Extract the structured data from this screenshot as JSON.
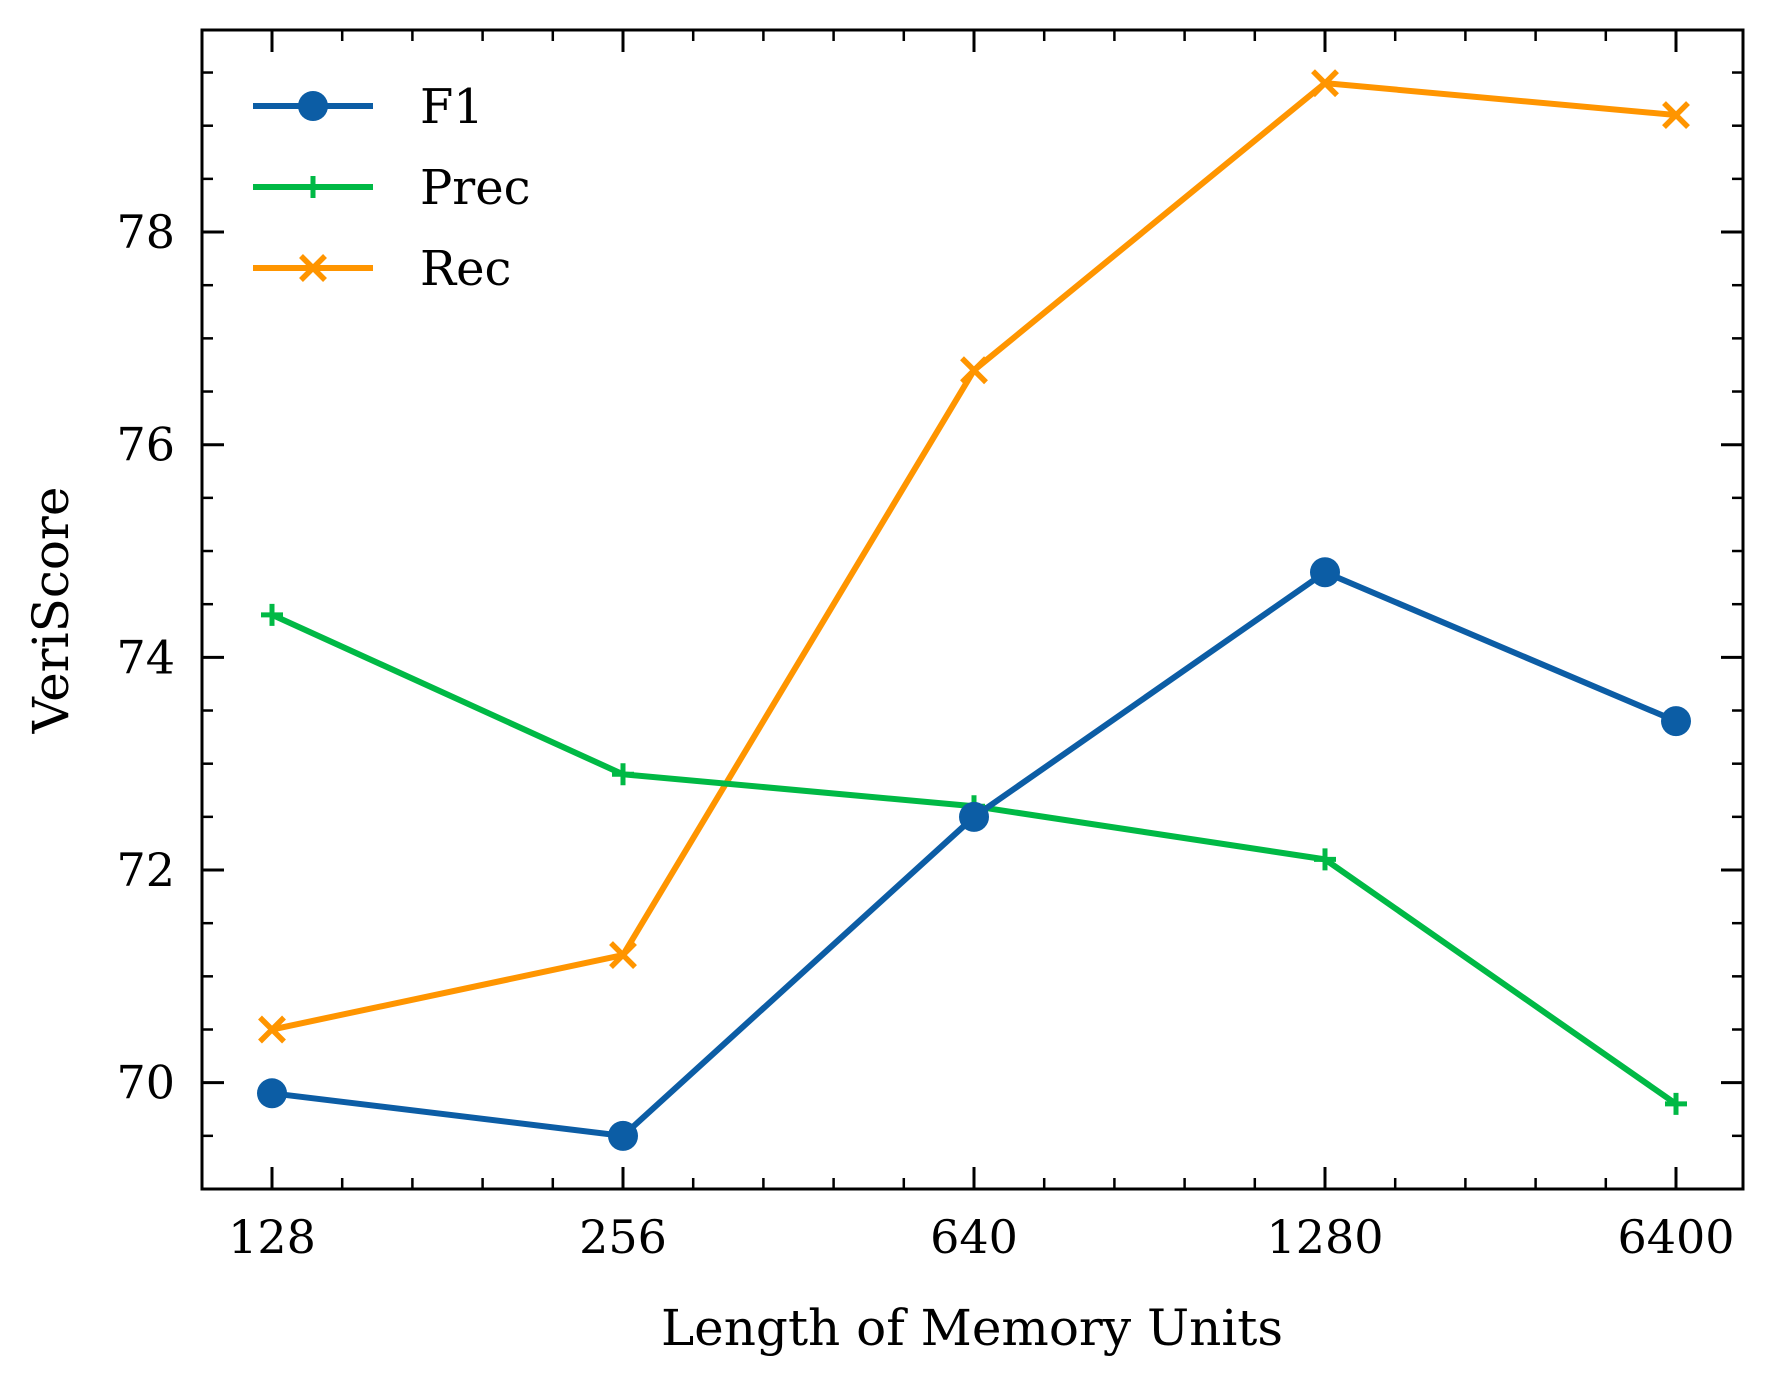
{
  "chart_data": {
    "type": "line",
    "title": "",
    "xlabel": "Length of Memory Units",
    "ylabel": "VeriScore",
    "categories": [
      "128",
      "256",
      "640",
      "1280",
      "6400"
    ],
    "ylim": [
      69.0,
      79.9
    ],
    "yticks": [
      70,
      72,
      74,
      76,
      78
    ],
    "ytick_labels": [
      "70",
      "72",
      "74",
      "76",
      "78"
    ],
    "grid": false,
    "legend_position": "top-left",
    "series": [
      {
        "name": "F1",
        "color": "#0C5DA5",
        "marker": "circle",
        "values": [
          69.9,
          69.5,
          72.5,
          74.8,
          73.4
        ]
      },
      {
        "name": "Prec",
        "color": "#00B945",
        "marker": "plus",
        "values": [
          74.4,
          72.9,
          72.6,
          72.1,
          69.8
        ]
      },
      {
        "name": "Rec",
        "color": "#FF9500",
        "marker": "x",
        "values": [
          70.5,
          71.2,
          76.7,
          79.4,
          79.1
        ]
      }
    ]
  }
}
